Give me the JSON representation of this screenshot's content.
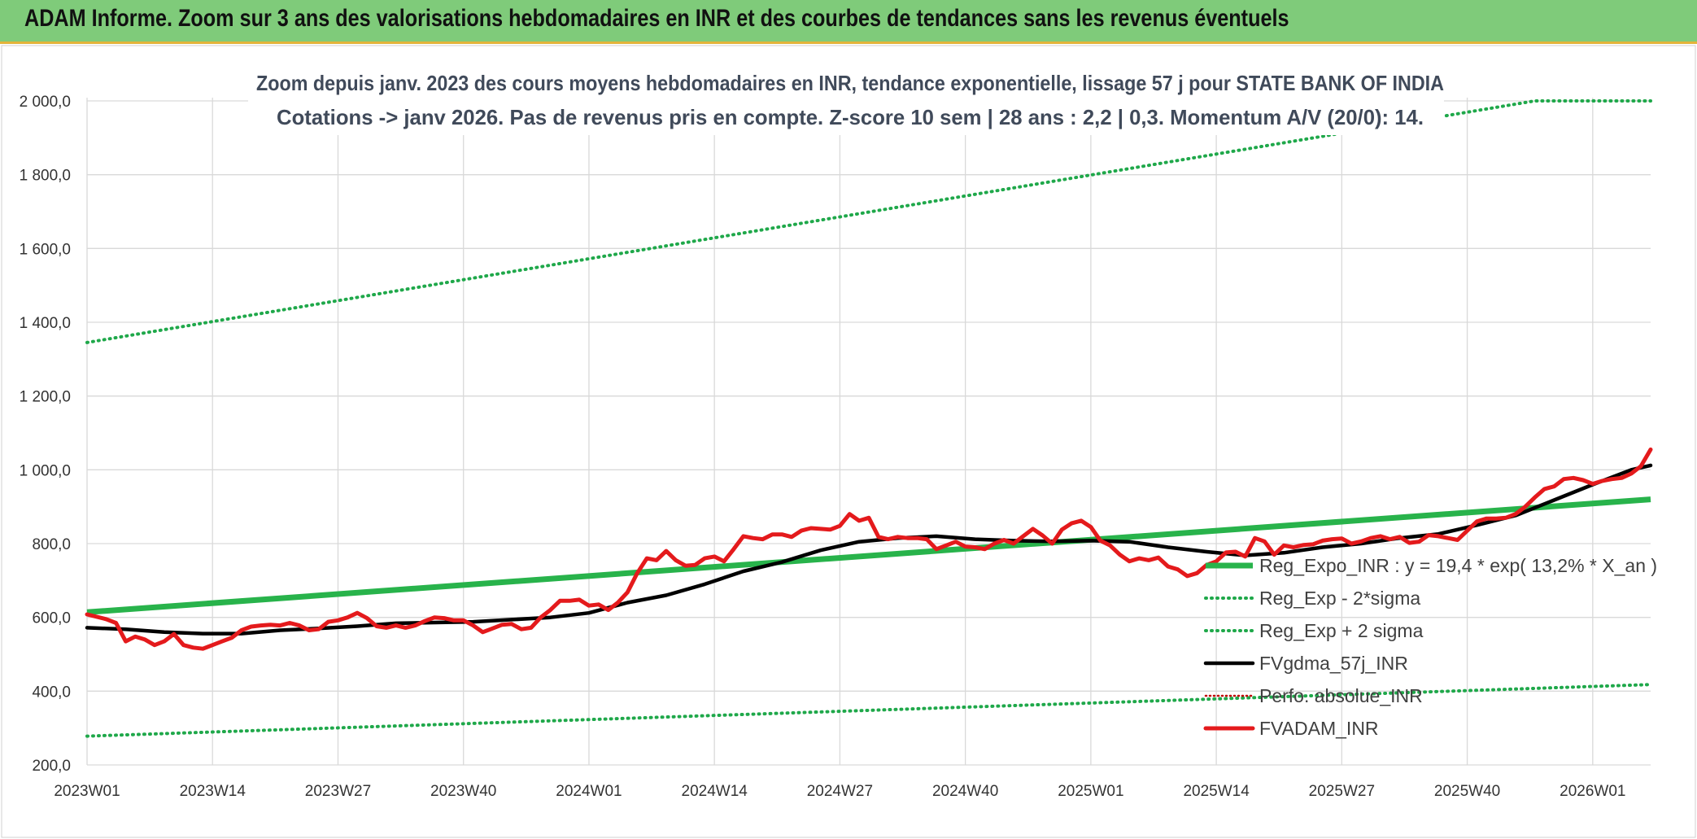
{
  "header": {
    "title": "ADAM Informe. Zoom sur 3 ans des valorisations hebdomadaires en INR et des courbes de tendances sans les revenus éventuels"
  },
  "chart_data": {
    "type": "line",
    "title_line1": "Zoom depuis janv. 2023 des cours moyens hebdomadaires en INR, tendance exponentielle, lissage 57 j pour STATE BANK OF INDIA",
    "title_line2": "Cotations -> janv 2026. Pas de revenus pris en compte. Z-score 10 sem | 28 ans : 2,2 | 0,3. Momentum A/V (20/0): 14.",
    "ylim": [
      200,
      2000
    ],
    "y_ticks": [
      "200,0",
      "400,0",
      "600,0",
      "800,0",
      "1 000,0",
      "1 200,0",
      "1 400,0",
      "1 600,0",
      "1 800,0",
      "2 000,0"
    ],
    "x_ticks": [
      "2023W01",
      "2023W14",
      "2023W27",
      "2023W40",
      "2024W01",
      "2024W14",
      "2024W27",
      "2024W40",
      "2025W01",
      "2025W14",
      "2025W27",
      "2025W40",
      "2026W01"
    ],
    "x_range_weeks": [
      0,
      162
    ],
    "grid": true,
    "legend_position": "bottom-right",
    "colors": {
      "reg_expo": "#28b34b",
      "sigma": "#1fa84a",
      "fvgdma": "#000000",
      "perfo": "#c00000",
      "fvadam": "#e41a1c",
      "grid": "#d9d9d9"
    },
    "series": [
      {
        "name": "Reg_Expo_INR : y = 19,4 * exp( 13,2% *  X_an )",
        "style": "thick",
        "x": [
          0,
          162
        ],
        "values": [
          614,
          920
        ]
      },
      {
        "name": "Reg_Exp - 2*sigma",
        "style": "dotted",
        "x": [
          0,
          162
        ],
        "values": [
          278,
          418
        ]
      },
      {
        "name": "Reg_Exp + 2 sigma",
        "style": "dotted",
        "x": [
          0,
          150,
          162
        ],
        "values": [
          1345,
          2000,
          2000
        ]
      },
      {
        "name": "FVgdma_57j_INR",
        "style": "line",
        "x": [
          0,
          4,
          8,
          12,
          16,
          20,
          24,
          28,
          32,
          36,
          40,
          44,
          48,
          52,
          56,
          60,
          64,
          68,
          72,
          76,
          80,
          84,
          88,
          92,
          96,
          100,
          104,
          108,
          112,
          116,
          120,
          124,
          128,
          132,
          136,
          140,
          144,
          148,
          152,
          156,
          160,
          162
        ],
        "values": [
          572,
          568,
          560,
          556,
          556,
          565,
          570,
          576,
          584,
          586,
          588,
          594,
          600,
          612,
          640,
          660,
          690,
          725,
          750,
          782,
          805,
          815,
          820,
          812,
          808,
          806,
          808,
          805,
          790,
          778,
          768,
          775,
          790,
          800,
          815,
          826,
          850,
          876,
          918,
          960,
          1000,
          1012
        ]
      },
      {
        "name": "Perfo. absolue_INR",
        "style": "dotted-red",
        "x": [],
        "values": []
      },
      {
        "name": "FVADAM_INR",
        "style": "thick",
        "x": [
          0,
          2,
          3,
          4,
          5,
          6,
          7,
          8,
          9,
          10,
          11,
          12,
          13,
          14,
          15,
          16,
          17,
          18,
          19,
          20,
          21,
          22,
          23,
          24,
          25,
          26,
          27,
          28,
          29,
          30,
          31,
          32,
          33,
          34,
          35,
          36,
          37,
          38,
          39,
          40,
          41,
          42,
          43,
          44,
          45,
          46,
          47,
          48,
          49,
          50,
          51,
          52,
          53,
          54,
          55,
          56,
          57,
          58,
          59,
          60,
          61,
          62,
          63,
          64,
          65,
          66,
          67,
          68,
          69,
          70,
          71,
          72,
          73,
          74,
          75,
          76,
          77,
          78,
          79,
          80,
          81,
          82,
          83,
          84,
          85,
          86,
          87,
          88,
          89,
          90,
          91,
          92,
          93,
          94,
          95,
          96,
          97,
          98,
          99,
          100,
          101,
          102,
          103,
          104,
          105,
          106,
          107,
          108,
          109,
          110,
          111,
          112,
          113,
          114,
          115,
          116,
          117,
          118,
          119,
          120,
          121,
          122,
          123,
          124,
          125,
          126,
          127,
          128,
          129,
          130,
          131,
          132,
          133,
          134,
          135,
          136,
          137,
          138,
          139,
          140,
          141,
          142,
          143,
          144,
          145,
          146,
          147,
          148,
          149,
          150,
          151,
          152,
          153,
          154,
          155,
          156,
          157,
          158,
          159,
          160,
          161,
          162
        ],
        "values": [
          608,
          595,
          585,
          535,
          548,
          540,
          525,
          535,
          555,
          525,
          518,
          515,
          525,
          535,
          545,
          565,
          575,
          578,
          580,
          578,
          585,
          578,
          565,
          568,
          588,
          592,
          600,
          612,
          598,
          576,
          572,
          578,
          572,
          578,
          590,
          600,
          598,
          592,
          592,
          578,
          560,
          570,
          580,
          582,
          568,
          572,
          600,
          620,
          645,
          645,
          648,
          632,
          635,
          620,
          640,
          668,
          720,
          760,
          755,
          780,
          755,
          740,
          742,
          760,
          765,
          752,
          785,
          820,
          815,
          812,
          825,
          825,
          818,
          835,
          842,
          840,
          838,
          848,
          880,
          862,
          870,
          818,
          812,
          818,
          815,
          815,
          812,
          785,
          795,
          805,
          792,
          790,
          785,
          800,
          810,
          800,
          820,
          840,
          822,
          800,
          838,
          855,
          862,
          845,
          808,
          795,
          770,
          752,
          760,
          755,
          762,
          738,
          730,
          712,
          720,
          742,
          752,
          776,
          778,
          765,
          815,
          806,
          770,
          795,
          790,
          796,
          798,
          808,
          812,
          814,
          800,
          806,
          815,
          820,
          812,
          818,
          802,
          805,
          823,
          820,
          815,
          810,
          835,
          860,
          868,
          868,
          870,
          880,
          900,
          925,
          948,
          955,
          975,
          978,
          972,
          962,
          970,
          975,
          978,
          990,
          1010,
          1055
        ]
      }
    ]
  }
}
